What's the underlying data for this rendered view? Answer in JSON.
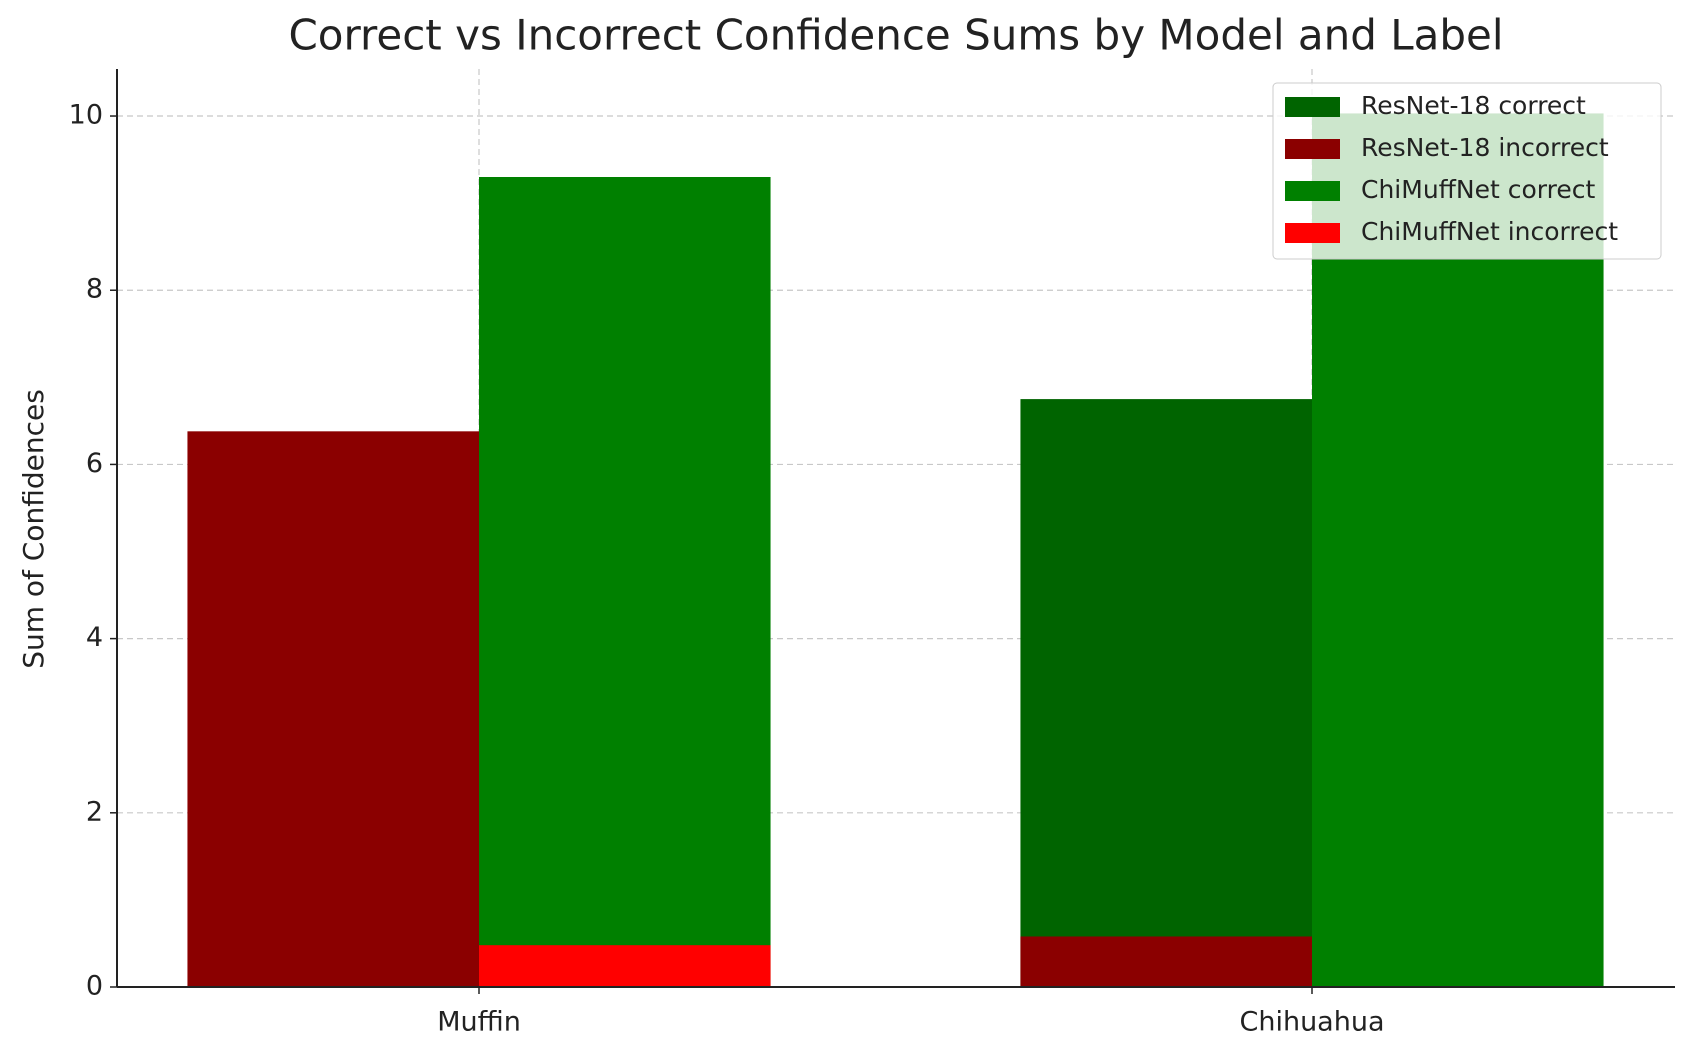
{
  "chart_data": {
    "type": "bar",
    "title": "Correct vs Incorrect Confidence Sums by Model and Label",
    "ylabel": "Sum of Confidences",
    "categories": [
      "Muffin",
      "Chihuahua"
    ],
    "series": [
      {
        "name": "ResNet-18 correct",
        "color": "#006400",
        "values": [
          0,
          6.75
        ]
      },
      {
        "name": "ResNet-18 incorrect",
        "color": "#8b0000",
        "values": [
          6.38,
          0.58
        ]
      },
      {
        "name": "ChiMuffNet correct",
        "color": "#008000",
        "values": [
          9.3,
          10.03
        ]
      },
      {
        "name": "ChiMuffNet incorrect",
        "color": "#ff0000",
        "values": [
          0.48,
          0
        ]
      }
    ],
    "ylim": [
      0,
      10.54
    ],
    "yticks": [
      0,
      2,
      4,
      6,
      8,
      10
    ],
    "grid": true,
    "legend": "upper right"
  }
}
